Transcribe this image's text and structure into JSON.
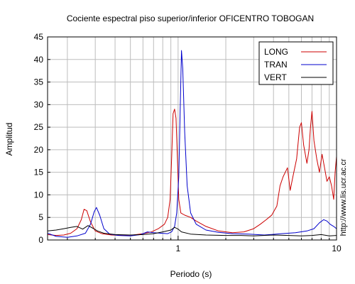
{
  "chart_data": {
    "type": "line",
    "title": "Cociente espectral piso superior/inferior OFICENTRO TOBOGAN",
    "xlabel": "Periodo (s)",
    "ylabel": "Amplitud",
    "x_scale": "log",
    "xlim": [
      0.15,
      10
    ],
    "ylim": [
      0,
      45
    ],
    "x_tick_labels": [
      {
        "value": 1,
        "label": "1"
      },
      {
        "value": 10,
        "label": "10"
      }
    ],
    "y_ticks": [
      0,
      5,
      10,
      15,
      20,
      25,
      30,
      35,
      40,
      45
    ],
    "grid": true,
    "legend_position": "top-right",
    "side_note": "http://www.lis.ucr.ac.cr",
    "series": [
      {
        "name": "LONG",
        "color": "#cc0000",
        "points": [
          [
            0.15,
            1.2
          ],
          [
            0.17,
            1.0
          ],
          [
            0.19,
            1.1
          ],
          [
            0.21,
            1.5
          ],
          [
            0.23,
            2.5
          ],
          [
            0.245,
            4.5
          ],
          [
            0.255,
            6.8
          ],
          [
            0.265,
            6.5
          ],
          [
            0.28,
            4.0
          ],
          [
            0.3,
            2.0
          ],
          [
            0.33,
            1.4
          ],
          [
            0.38,
            1.1
          ],
          [
            0.45,
            1.0
          ],
          [
            0.52,
            1.1
          ],
          [
            0.6,
            1.4
          ],
          [
            0.68,
            1.8
          ],
          [
            0.75,
            2.5
          ],
          [
            0.82,
            3.5
          ],
          [
            0.86,
            5.0
          ],
          [
            0.89,
            9.0
          ],
          [
            0.91,
            18.0
          ],
          [
            0.93,
            28.0
          ],
          [
            0.95,
            29.0
          ],
          [
            0.97,
            27.0
          ],
          [
            0.99,
            18.0
          ],
          [
            1.01,
            9.0
          ],
          [
            1.04,
            6.0
          ],
          [
            1.1,
            5.5
          ],
          [
            1.2,
            5.0
          ],
          [
            1.3,
            4.2
          ],
          [
            1.5,
            3.0
          ],
          [
            1.8,
            2.0
          ],
          [
            2.2,
            1.6
          ],
          [
            2.6,
            1.8
          ],
          [
            3.0,
            2.5
          ],
          [
            3.3,
            3.5
          ],
          [
            3.6,
            4.5
          ],
          [
            3.9,
            5.5
          ],
          [
            4.2,
            7.5
          ],
          [
            4.4,
            12.0
          ],
          [
            4.6,
            14.0
          ],
          [
            4.9,
            16.0
          ],
          [
            5.1,
            11.0
          ],
          [
            5.3,
            14.0
          ],
          [
            5.6,
            18.0
          ],
          [
            5.85,
            25.0
          ],
          [
            6.0,
            26.0
          ],
          [
            6.2,
            21.0
          ],
          [
            6.5,
            17.0
          ],
          [
            6.7,
            20.0
          ],
          [
            6.85,
            25.0
          ],
          [
            7.0,
            28.5
          ],
          [
            7.2,
            22.0
          ],
          [
            7.5,
            18.0
          ],
          [
            7.8,
            15.0
          ],
          [
            8.1,
            19.0
          ],
          [
            8.4,
            16.0
          ],
          [
            8.7,
            13.0
          ],
          [
            9.0,
            14.0
          ],
          [
            9.3,
            12.0
          ],
          [
            9.6,
            9.0
          ],
          [
            9.8,
            15.0
          ],
          [
            10.0,
            18.5
          ]
        ]
      },
      {
        "name": "TRAN",
        "color": "#0000cc",
        "points": [
          [
            0.15,
            1.5
          ],
          [
            0.17,
            0.8
          ],
          [
            0.2,
            0.6
          ],
          [
            0.23,
            0.9
          ],
          [
            0.26,
            1.5
          ],
          [
            0.28,
            3.5
          ],
          [
            0.295,
            6.2
          ],
          [
            0.305,
            7.2
          ],
          [
            0.32,
            5.5
          ],
          [
            0.34,
            2.5
          ],
          [
            0.37,
            1.3
          ],
          [
            0.42,
            1.0
          ],
          [
            0.5,
            0.9
          ],
          [
            0.58,
            1.2
          ],
          [
            0.64,
            1.8
          ],
          [
            0.7,
            1.6
          ],
          [
            0.78,
            1.5
          ],
          [
            0.86,
            1.4
          ],
          [
            0.91,
            1.8
          ],
          [
            0.95,
            3.0
          ],
          [
            0.98,
            6.0
          ],
          [
            1.01,
            14.0
          ],
          [
            1.03,
            28.0
          ],
          [
            1.05,
            42.0
          ],
          [
            1.07,
            38.0
          ],
          [
            1.1,
            24.0
          ],
          [
            1.14,
            12.0
          ],
          [
            1.2,
            6.0
          ],
          [
            1.3,
            3.5
          ],
          [
            1.5,
            2.2
          ],
          [
            1.8,
            1.7
          ],
          [
            2.2,
            1.4
          ],
          [
            2.8,
            1.3
          ],
          [
            3.5,
            1.1
          ],
          [
            4.5,
            1.4
          ],
          [
            5.5,
            1.6
          ],
          [
            6.5,
            2.0
          ],
          [
            7.2,
            2.5
          ],
          [
            7.8,
            3.8
          ],
          [
            8.3,
            4.5
          ],
          [
            8.7,
            4.2
          ],
          [
            9.1,
            3.5
          ],
          [
            9.6,
            3.0
          ],
          [
            10.0,
            2.5
          ]
        ]
      },
      {
        "name": "VERT",
        "color": "#000000",
        "points": [
          [
            0.15,
            2.0
          ],
          [
            0.17,
            2.2
          ],
          [
            0.19,
            2.5
          ],
          [
            0.21,
            2.8
          ],
          [
            0.23,
            3.0
          ],
          [
            0.25,
            2.4
          ],
          [
            0.27,
            3.2
          ],
          [
            0.29,
            2.6
          ],
          [
            0.31,
            2.0
          ],
          [
            0.34,
            1.5
          ],
          [
            0.4,
            1.2
          ],
          [
            0.5,
            1.1
          ],
          [
            0.6,
            1.2
          ],
          [
            0.7,
            1.4
          ],
          [
            0.8,
            1.8
          ],
          [
            0.9,
            2.2
          ],
          [
            0.95,
            2.8
          ],
          [
            1.0,
            2.4
          ],
          [
            1.05,
            1.8
          ],
          [
            1.2,
            1.3
          ],
          [
            1.5,
            1.1
          ],
          [
            2.0,
            1.0
          ],
          [
            2.5,
            1.0
          ],
          [
            3.0,
            0.9
          ],
          [
            4.0,
            1.1
          ],
          [
            5.0,
            1.0
          ],
          [
            6.0,
            0.9
          ],
          [
            7.0,
            1.0
          ],
          [
            8.0,
            1.2
          ],
          [
            9.0,
            0.9
          ],
          [
            10.0,
            1.0
          ]
        ]
      }
    ]
  }
}
